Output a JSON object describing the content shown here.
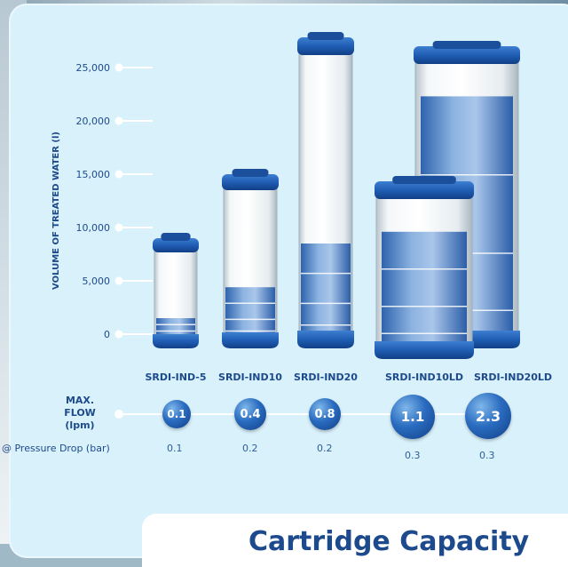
{
  "chart_data": {
    "type": "bar",
    "ylabel": "VOLUME OF TREATED WATER (l)",
    "yticks": [
      "25,000",
      "20,000",
      "15,000",
      "10,000",
      "5,000",
      "0"
    ],
    "categories": [
      "SRDI-IND-5",
      "SRDI-IND10",
      "SRDI-IND20",
      "SRDI-IND10LD",
      "SRDI-IND20LD"
    ],
    "series": [
      {
        "values": [
          1500,
          4400,
          8500,
          9600,
          22300
        ]
      }
    ],
    "ylim": [
      0,
      25000
    ],
    "grid": false
  },
  "flow": {
    "label_line1": "MAX.",
    "label_line2": "FLOW",
    "label_line3": "(lpm)",
    "values": [
      "0.1",
      "0.4",
      "0.8",
      "1.1",
      "2.3"
    ]
  },
  "pressure_drop": {
    "label": "@ Pressure Drop (bar)",
    "values": [
      "0.1",
      "0.2",
      "0.2",
      "0.3",
      "0.3"
    ]
  },
  "footer": {
    "title": "Cartridge Capacity"
  }
}
